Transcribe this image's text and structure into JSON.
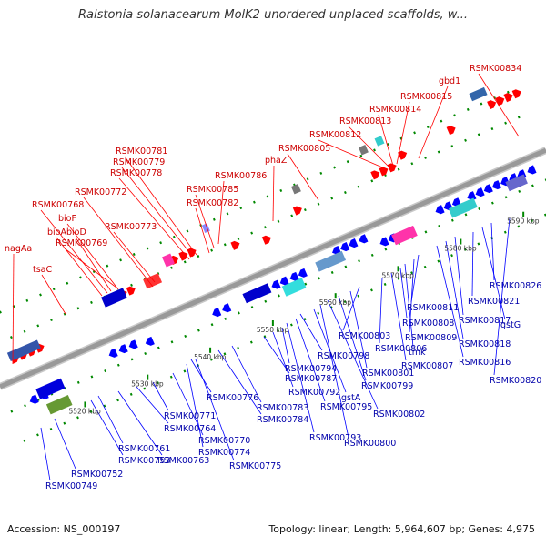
{
  "title": "Ralstonia solanacearum MolK2 unordered unplaced scaffolds, w...",
  "footer": {
    "accession": "Accession: NS_000197",
    "topology": "Topology: linear; Length: 5,964,607 bp; Genes: 4,975"
  },
  "colors": {
    "forward": "#ff0000",
    "reverse": "#0000ff",
    "backbone": "#999999",
    "tick": "#008800"
  },
  "ticks": [
    "5520 kbp",
    "5530 kbp",
    "5540 kbp",
    "5550 kbp",
    "5560 kbp",
    "5570 kbp",
    "5580 kbp",
    "5590 kbp"
  ],
  "top_labels": [
    "nagAa",
    "tsaC",
    "bioA",
    "bioD",
    "RSMK00769",
    "bioF",
    "RSMK00768",
    "RSMK00772",
    "RSMK00773",
    "RSMK00778",
    "RSMK00779",
    "RSMK00781",
    "RSMK00782",
    "RSMK00785",
    "RSMK00786",
    "phaZ",
    "RSMK00805",
    "RSMK00812",
    "RSMK00813",
    "RSMK00814",
    "RSMK00815",
    "gbd1",
    "RSMK00834"
  ],
  "bottom_labels": [
    "RSMK00749",
    "RSMK00752",
    "RSMK00753",
    "RSMK00761",
    "RSMK00763",
    "RSMK00764",
    "RSMK00771",
    "RSMK00770",
    "RSMK00774",
    "RSMK00775",
    "RSMK00776",
    "RSMK00784",
    "RSMK00783",
    "RSMK00787",
    "RSMK00792",
    "RSMK00794",
    "RSMK00793",
    "RSMK00795",
    "RSMK00798",
    "gstA",
    "RSMK00800",
    "RSMK00802",
    "RSMK00799",
    "RSMK00801",
    "RSMK00803",
    "RSMK00806",
    "RSMK00807",
    "RSMK00808",
    "tmk",
    "RSMK00809",
    "RSMK00811",
    "RSMK00816",
    "RSMK00818",
    "RSMK00817",
    "RSMK00821",
    "gstG",
    "RSMK00826",
    "RSMK00820"
  ]
}
